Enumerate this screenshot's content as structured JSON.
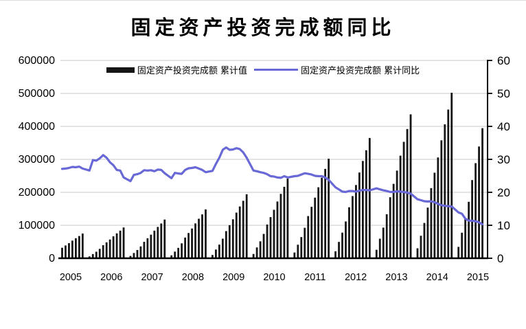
{
  "title": {
    "text": "固定资产投资完成额同比"
  },
  "legend": {
    "items": [
      {
        "label": "固定资产投资完成额 累计值",
        "type": "bar",
        "color": "#161616"
      },
      {
        "label": "固定资产投资完成额 累计同比",
        "type": "line",
        "color": "#6868d6"
      }
    ]
  },
  "chart_data": {
    "type": "combo-bar-line",
    "title": "固定资产投资完成额同比",
    "grid": "horizontal",
    "grid_color": "#c8c8c8",
    "x_axis": {
      "year_labels": [
        "2005",
        "2006",
        "2007",
        "2008",
        "2009",
        "2010",
        "2011",
        "2012",
        "2013",
        "2014",
        "2015"
      ],
      "start": {
        "year": 2005,
        "month": 6
      },
      "end": {
        "year": 2015,
        "month": 9
      },
      "note": "monthly cumulative data, no January values"
    },
    "left_axis": {
      "min": 0,
      "max": 600000,
      "ticks": [
        0,
        100000,
        200000,
        300000,
        400000,
        500000,
        600000
      ]
    },
    "right_axis": {
      "min": 0,
      "max": 60,
      "ticks": [
        0,
        10,
        20,
        30,
        40,
        50,
        60
      ]
    },
    "series": [
      {
        "name": "固定资产投资完成额 累计值",
        "type": "bar",
        "axis": "left",
        "color": "#161616",
        "data": [
          {
            "year": 2005,
            "start_month": 6,
            "values": [
              31840,
              38824,
              45733,
              53543,
              60752,
              67435,
              75095
            ]
          },
          {
            "year": 2006,
            "start_month": 2,
            "values": [
              5602,
              12698,
              19888,
              28571,
              39588,
              48272,
              56862,
              66572,
              75536,
              83845,
              93369
            ]
          },
          {
            "year": 2007,
            "start_month": 2,
            "values": [
              7048,
              15975,
              25020,
              35944,
              49805,
              60729,
              71536,
              83752,
              95028,
              105483,
              117464
            ]
          },
          {
            "year": 2008,
            "start_month": 2,
            "values": [
              8890,
              20151,
              31560,
              45339,
              62823,
              76602,
              90234,
              105643,
              119867,
              133054,
              148167
            ]
          },
          {
            "year": 2009,
            "start_month": 2,
            "values": [
              10041,
              26403,
              41352,
              59404,
              82315,
              100370,
              118231,
              138421,
              157058,
              174337,
              194139
            ]
          },
          {
            "year": 2010,
            "start_month": 2,
            "values": [
              13014,
              32835,
              51431,
              73872,
              102360,
              124812,
              147022,
              172129,
              195305,
              216791,
              241415
            ]
          },
          {
            "year": 2011,
            "start_month": 2,
            "values": [
              17444,
              41060,
              64312,
              92389,
              128020,
              156099,
              183877,
              215278,
              244264,
              271136,
              301933
            ]
          },
          {
            "year": 2012,
            "start_month": 2,
            "values": [
              21189,
              49618,
              77710,
              111640,
              154690,
              188620,
              222185,
              260127,
              295151,
              327622,
              364835
            ]
          },
          {
            "year": 2013,
            "start_month": 2,
            "values": [
              25676,
              59368,
              92980,
              133577,
              185088,
              225685,
              265845,
              311245,
              353151,
              392002,
              436528
            ]
          },
          {
            "year": 2014,
            "start_month": 2,
            "values": [
              30283,
              68322,
              107078,
              153716,
              212770,
              259493,
              305786,
              357787,
              406161,
              451069,
              502005
            ]
          },
          {
            "year": 2015,
            "start_month": 2,
            "values": [
              34491,
              77511,
              119979,
              171245,
              237132,
              288469,
              338977,
              394531
            ]
          }
        ]
      },
      {
        "name": "固定资产投资完成额 累计同比",
        "type": "line",
        "axis": "right",
        "color": "#6868d6",
        "data": [
          {
            "year": 2005,
            "start_month": 6,
            "values": [
              27.1,
              27.2,
              27.4,
              27.7,
              27.6,
              27.8,
              27.2
            ]
          },
          {
            "year": 2006,
            "start_month": 2,
            "values": [
              26.6,
              29.8,
              29.6,
              30.3,
              31.3,
              30.5,
              29.1,
              28.2,
              26.8,
              26.6,
              24.5
            ]
          },
          {
            "year": 2007,
            "start_month": 2,
            "values": [
              23.4,
              25.3,
              25.5,
              25.9,
              26.7,
              26.6,
              26.7,
              26.4,
              26.9,
              26.8,
              25.8
            ]
          },
          {
            "year": 2008,
            "start_month": 2,
            "values": [
              24.3,
              25.9,
              25.7,
              25.6,
              26.8,
              27.3,
              27.4,
              27.6,
              27.2,
              26.8,
              26.1
            ]
          },
          {
            "year": 2009,
            "start_month": 2,
            "values": [
              26.5,
              28.6,
              30.5,
              32.9,
              33.6,
              32.9,
              33.0,
              33.4,
              33.1,
              32.1,
              30.5
            ]
          },
          {
            "year": 2010,
            "start_month": 2,
            "values": [
              26.6,
              26.4,
              26.1,
              25.9,
              25.5,
              24.9,
              24.8,
              24.5,
              24.4,
              24.9,
              24.5
            ]
          },
          {
            "year": 2011,
            "start_month": 2,
            "values": [
              24.9,
              25.0,
              25.4,
              25.8,
              25.6,
              25.4,
              25.0,
              24.9,
              24.9,
              24.5,
              23.8
            ]
          },
          {
            "year": 2012,
            "start_month": 2,
            "values": [
              21.5,
              20.9,
              20.2,
              20.1,
              20.4,
              20.4,
              20.2,
              20.5,
              20.7,
              20.7,
              20.6
            ]
          },
          {
            "year": 2013,
            "start_month": 2,
            "values": [
              21.2,
              20.9,
              20.6,
              20.4,
              20.1,
              20.1,
              20.3,
              20.2,
              20.1,
              19.9,
              19.6
            ]
          },
          {
            "year": 2014,
            "start_month": 2,
            "values": [
              17.9,
              17.6,
              17.3,
              17.2,
              17.3,
              17.0,
              16.5,
              16.1,
              15.9,
              15.8,
              15.7
            ]
          },
          {
            "year": 2015,
            "start_month": 2,
            "values": [
              13.9,
              13.5,
              12.0,
              11.4,
              11.4,
              11.2,
              10.9,
              10.3
            ]
          }
        ]
      }
    ]
  }
}
